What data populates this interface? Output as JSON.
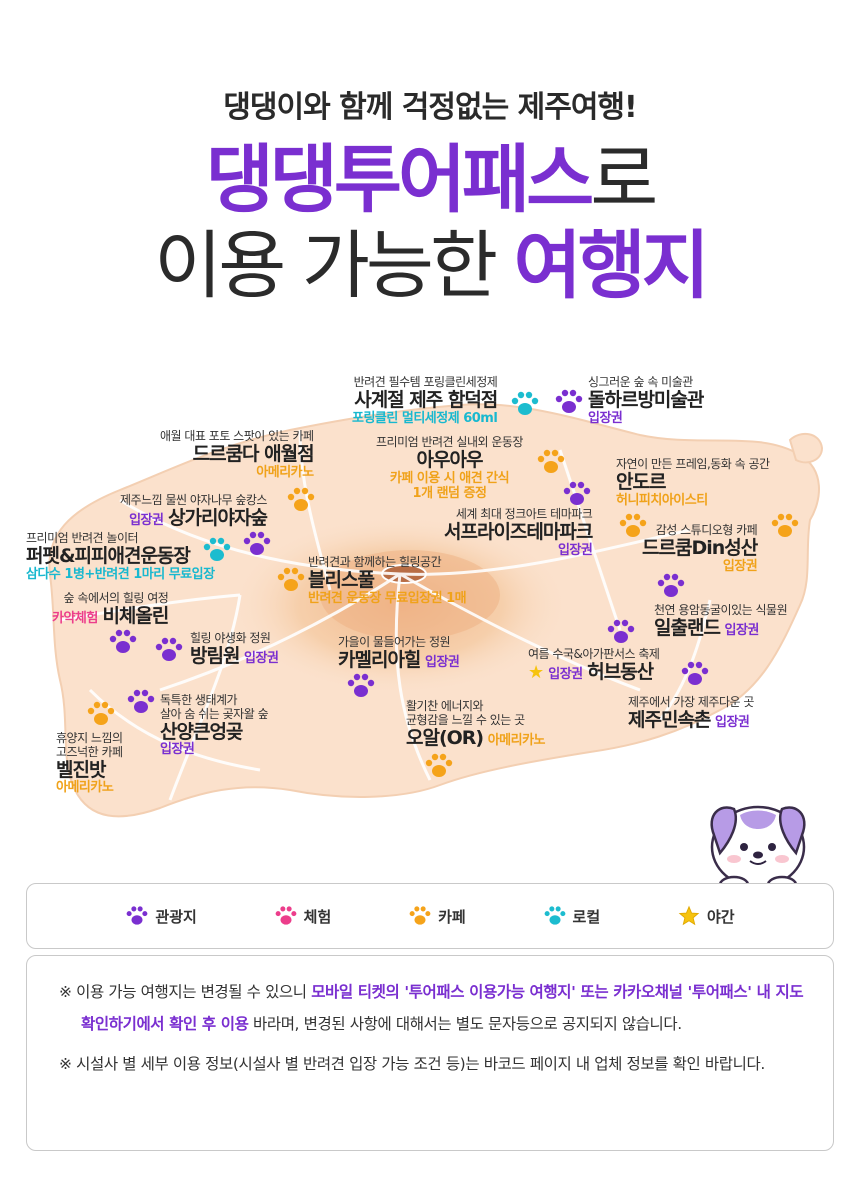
{
  "header": {
    "subtitle": "댕댕이와 함께 걱정없는 제주여행!",
    "title_highlight": "댕댕투어패스",
    "title_suffix": "로",
    "title_line2_prefix": "이용 가능한 ",
    "title_line2_highlight": "여행지"
  },
  "locations": [
    {
      "desc": "반려견 필수템 포링클린세정제",
      "name": "사계절 제주 함덕점",
      "tag": "포링클린 멀티세정제 60ml",
      "tag_color": "cyan"
    },
    {
      "desc": "싱그러운 숲 속 미술관",
      "name": "돌하르방미술관",
      "tag": "입장권",
      "tag_color": "purple"
    },
    {
      "desc": "애월 대표 포토 스팟이 있는 카페",
      "name": "드르쿰다 애월점",
      "tag": "아메리카노",
      "tag_color": "orange"
    },
    {
      "desc": "프리미엄 반려견 실내외 운동장",
      "name": "아우아우",
      "tag": "카페 이용 시 애견 간식",
      "tag2": "1개 랜덤 증정",
      "tag_color": "orange"
    },
    {
      "desc": "자연이 만든 프레임,동화 속 공간",
      "name": "안도르",
      "tag": "허니피치아이스티",
      "tag_color": "orange"
    },
    {
      "desc": "제주느낌 물씬 야자나무 숲캉스",
      "name": "상가리야자숲",
      "tag": "입장권",
      "tag_color": "purple"
    },
    {
      "desc": "세계 최대 정크아트 테마파크",
      "name": "서프라이즈테마파크",
      "tag": "입장권",
      "tag_color": "purple"
    },
    {
      "desc": "감성 스튜디오형 카페",
      "name": "드르쿰Din성산",
      "tag": "입장권",
      "tag_color": "orange"
    },
    {
      "desc": "프리미엄 반려견 놀이터",
      "name": "퍼펫&피피애견운동장",
      "tag": "삼다수 1병+반려견 1마리 무료입장",
      "tag_color": "cyan"
    },
    {
      "desc": "반려견과 함께하는 힐링공간",
      "name": "블리스풀",
      "tag": "반려견 운동장 무료입장권 1매",
      "tag_color": "orange"
    },
    {
      "desc": "숲 속에서의 힐링 여정",
      "name": "비체올린",
      "tag": "카약체험",
      "tag_color": "pink"
    },
    {
      "desc": "천연 용암동굴이있는 식물원",
      "name": "일출랜드",
      "tag": "입장권",
      "tag_color": "purple"
    },
    {
      "desc": "힐링 야생화 정원",
      "name": "방림원",
      "tag": "입장권",
      "tag_color": "purple"
    },
    {
      "desc": "가을이 물들어가는 정원",
      "name": "카멜리아힐",
      "tag": "입장권",
      "tag_color": "purple"
    },
    {
      "desc": "여름 수국&아가판서스 축제",
      "name": "허브동산",
      "tag": "입장권",
      "tag_color": "purple"
    },
    {
      "desc": "독특한 생태계가",
      "desc2": "살아 숨 쉬는 곶자왈 숲",
      "name": "산양큰엉곶",
      "tag": "입장권",
      "tag_color": "purple"
    },
    {
      "desc": "제주에서 가장 제주다운 곳",
      "name": "제주민속촌",
      "tag": "입장권",
      "tag_color": "purple"
    },
    {
      "desc": "활기찬 에너지와",
      "desc2": "균형감을 느낄 수 있는 곳",
      "name": "오알(OR)",
      "tag": "아메리카노",
      "tag_color": "orange"
    },
    {
      "desc": "휴양지 느낌의",
      "desc2": "고즈넉한 카페",
      "name": "벨진밧",
      "tag": "아메리카노",
      "tag_color": "orange"
    }
  ],
  "legend": [
    {
      "label": "관광지",
      "color": "#7a2fd0",
      "icon": "paw-icon"
    },
    {
      "label": "체험",
      "color": "#ec3d8b",
      "icon": "paw-icon"
    },
    {
      "label": "카페",
      "color": "#f5a31a",
      "icon": "paw-icon"
    },
    {
      "label": "로컬",
      "color": "#1cbccf",
      "icon": "paw-icon"
    },
    {
      "label": "야간",
      "color": "#f6c30f",
      "icon": "star-icon"
    }
  ],
  "notes": {
    "n1_a": "※ 이용 가능 여행지는 변경될 수 있으니 ",
    "n1_b": "모바일 티켓의 '투어패스 이용가능 여행지' 또는 카카오채널 '투어패스' 내 지도 확인하기에서 확인 후 이용",
    "n1_c": " 바라며, 변경된 사항에 대해서는 별도 문자등으로 공지되지 않습니다.",
    "n2": "※ 시설사 별 세부 이용 정보(시설사 별 반려견 입장 가능 조건 등)는 바코드 페이지 내 업체 정보를 확인 바랍니다."
  },
  "colors": {
    "accent_purple": "#7a2fd0",
    "island_fill": "#fbe1cc",
    "island_center": "#f4c29a",
    "tag_orange": "#f0a21a",
    "tag_cyan": "#18b8cf"
  }
}
